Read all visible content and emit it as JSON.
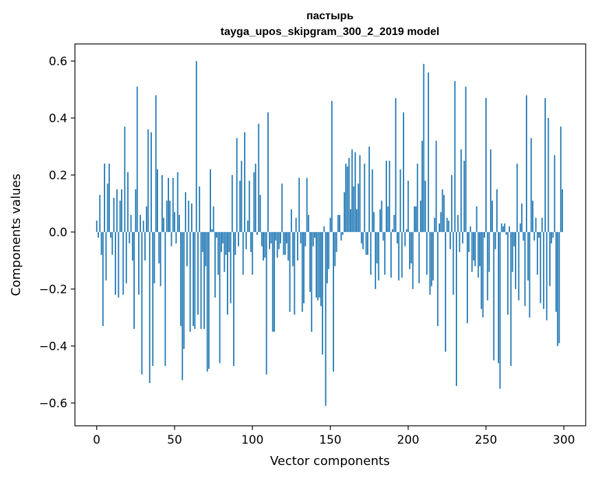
{
  "chart_data": {
    "type": "bar",
    "title": "пастырь",
    "subtitle": "tayga_upos_skipgram_300_2_2019 model",
    "xlabel": "Vector components",
    "ylabel": "Components values",
    "xlim": [
      -14,
      314
    ],
    "ylim": [
      -0.68,
      0.66
    ],
    "xticks": [
      0,
      50,
      100,
      150,
      200,
      250,
      300
    ],
    "xtick_labels": [
      "0",
      "50",
      "100",
      "150",
      "200",
      "250",
      "300"
    ],
    "yticks": [
      -0.6,
      -0.4,
      -0.2,
      0.0,
      0.2,
      0.4,
      0.6
    ],
    "ytick_labels": [
      "−0.6",
      "−0.4",
      "−0.2",
      "0.0",
      "0.2",
      "0.4",
      "0.6"
    ],
    "grid": false,
    "bar_color": "#1f77b4",
    "x": [
      0,
      1,
      2,
      3,
      4,
      5,
      6,
      7,
      8,
      9,
      10,
      11,
      12,
      13,
      14,
      15,
      16,
      17,
      18,
      19,
      20,
      21,
      22,
      23,
      24,
      25,
      26,
      27,
      28,
      29,
      30,
      31,
      32,
      33,
      34,
      35,
      36,
      37,
      38,
      39,
      40,
      41,
      42,
      43,
      44,
      45,
      46,
      47,
      48,
      49,
      50,
      51,
      52,
      53,
      54,
      55,
      56,
      57,
      58,
      59,
      60,
      61,
      62,
      63,
      64,
      65,
      66,
      67,
      68,
      69,
      70,
      71,
      72,
      73,
      74,
      75,
      76,
      77,
      78,
      79,
      80,
      81,
      82,
      83,
      84,
      85,
      86,
      87,
      88,
      89,
      90,
      91,
      92,
      93,
      94,
      95,
      96,
      97,
      98,
      99,
      100,
      101,
      102,
      103,
      104,
      105,
      106,
      107,
      108,
      109,
      110,
      111,
      112,
      113,
      114,
      115,
      116,
      117,
      118,
      119,
      120,
      121,
      122,
      123,
      124,
      125,
      126,
      127,
      128,
      129,
      130,
      131,
      132,
      133,
      134,
      135,
      136,
      137,
      138,
      139,
      140,
      141,
      142,
      143,
      144,
      145,
      146,
      147,
      148,
      149,
      150,
      151,
      152,
      153,
      154,
      155,
      156,
      157,
      158,
      159,
      160,
      161,
      162,
      163,
      164,
      165,
      166,
      167,
      168,
      169,
      170,
      171,
      172,
      173,
      174,
      175,
      176,
      177,
      178,
      179,
      180,
      181,
      182,
      183,
      184,
      185,
      186,
      187,
      188,
      189,
      190,
      191,
      192,
      193,
      194,
      195,
      196,
      197,
      198,
      199,
      200,
      201,
      202,
      203,
      204,
      205,
      206,
      207,
      208,
      209,
      210,
      211,
      212,
      213,
      214,
      215,
      216,
      217,
      218,
      219,
      220,
      221,
      222,
      223,
      224,
      225,
      226,
      227,
      228,
      229,
      230,
      231,
      232,
      233,
      234,
      235,
      236,
      237,
      238,
      239,
      240,
      241,
      242,
      243,
      244,
      245,
      246,
      247,
      248,
      249,
      250,
      251,
      252,
      253,
      254,
      255,
      256,
      257,
      258,
      259,
      260,
      261,
      262,
      263,
      264,
      265,
      266,
      267,
      268,
      269,
      270,
      271,
      272,
      273,
      274,
      275,
      276,
      277,
      278,
      279,
      280,
      281,
      282,
      283,
      284,
      285,
      286,
      287,
      288,
      289,
      290,
      291,
      292,
      293,
      294,
      295,
      296,
      297,
      298,
      299
    ],
    "values": [
      0.04,
      -0.02,
      0.13,
      -0.08,
      -0.33,
      0.24,
      -0.17,
      0.17,
      0.24,
      -0.02,
      -0.08,
      0.12,
      -0.22,
      0.15,
      -0.23,
      0.11,
      0.15,
      -0.22,
      0.37,
      -0.18,
      0.21,
      -0.04,
      0.06,
      -0.1,
      -0.34,
      0.15,
      0.51,
      -0.22,
      0.06,
      -0.5,
      0.04,
      -0.1,
      0.09,
      0.36,
      -0.53,
      0.35,
      -0.47,
      -0.18,
      0.48,
      0.22,
      -0.11,
      -0.19,
      0.2,
      0.05,
      -0.47,
      0.11,
      0.19,
      0.11,
      -0.05,
      0.19,
      0.07,
      -0.04,
      0.21,
      0.06,
      -0.33,
      -0.52,
      -0.41,
      0.14,
      -0.12,
      0.11,
      -0.35,
      0.1,
      -0.33,
      -0.34,
      0.6,
      -0.29,
      0.16,
      -0.34,
      -0.07,
      -0.34,
      -0.12,
      -0.49,
      -0.48,
      0.22,
      0.01,
      0.09,
      -0.23,
      -0.02,
      -0.15,
      -0.46,
      -0.07,
      -0.04,
      -0.14,
      -0.08,
      -0.29,
      -0.07,
      -0.25,
      0.2,
      -0.47,
      -0.08,
      0.33,
      -0.05,
      0.18,
      0.25,
      -0.15,
      0.35,
      -0.06,
      0.04,
      0.18,
      -0.07,
      -0.15,
      0.21,
      0.24,
      -0.01,
      0.38,
      0.13,
      -0.05,
      -0.1,
      -0.09,
      -0.5,
      0.42,
      -0.06,
      -0.04,
      -0.35,
      -0.35,
      -0.03,
      -0.09,
      -0.06,
      -0.04,
      0.17,
      -0.08,
      -0.08,
      -0.04,
      -0.1,
      -0.28,
      0.08,
      -0.12,
      -0.29,
      0.05,
      -0.1,
      0.19,
      -0.04,
      -0.28,
      -0.25,
      -0.05,
      0.19,
      0.06,
      -0.21,
      -0.35,
      -0.05,
      -0.02,
      -0.23,
      -0.24,
      -0.23,
      -0.26,
      -0.43,
      0.02,
      -0.61,
      -0.18,
      -0.13,
      0.05,
      0.46,
      -0.49,
      -0.12,
      -0.07,
      0.06,
      0.06,
      -0.03,
      -0.01,
      0.14,
      0.24,
      0.23,
      0.26,
      0.08,
      0.29,
      0.16,
      0.28,
      0.08,
      0.17,
      0.27,
      -0.04,
      -0.06,
      0.24,
      -0.08,
      -0.08,
      0.3,
      -0.15,
      0.22,
      0.07,
      -0.2,
      -0.11,
      -0.17,
      0.08,
      0.11,
      -0.03,
      -0.15,
      0.25,
      0.09,
      0.25,
      -0.16,
      0.01,
      0.06,
      0.47,
      -0.04,
      -0.17,
      0.22,
      -0.16,
      0.42,
      -0.05,
      0.01,
      0.18,
      -0.13,
      -0.11,
      -0.2,
      0.09,
      0.09,
      0.24,
      -0.18,
      0.11,
      0.32,
      0.59,
      0.18,
      -0.15,
      0.56,
      -0.22,
      -0.19,
      -0.17,
      0.05,
      0.32,
      -0.33,
      0.03,
      0.07,
      0.15,
      0.13,
      -0.42,
      0.05,
      0.04,
      -0.06,
      0.2,
      -0.22,
      0.53,
      -0.54,
      0.06,
      -0.07,
      0.29,
      -0.04,
      0.25,
      0.51,
      -0.32,
      -0.07,
      0.02,
      -0.14,
      -0.1,
      -0.12,
      0.09,
      -0.16,
      -0.12,
      -0.27,
      -0.3,
      -0.02,
      0.47,
      -0.24,
      -0.14,
      0.29,
      0.11,
      -0.45,
      -0.06,
      0.15,
      -0.46,
      -0.55,
      0.03,
      0.02,
      0.03,
      -0.01,
      -0.29,
      0.02,
      -0.47,
      -0.14,
      -0.05,
      -0.2,
      0.24,
      -0.24,
      0.03,
      0.1,
      -0.03,
      -0.26,
      0.48,
      -0.17,
      -0.3,
      0.33,
      0.11,
      -0.03,
      0.05,
      -0.15,
      -0.02,
      -0.25,
      0.05,
      -0.27,
      0.47,
      -0.31,
      0.4,
      -0.19,
      -0.04,
      -0.02,
      0.27,
      -0.28,
      -0.4,
      -0.39,
      0.37,
      0.15
    ]
  }
}
